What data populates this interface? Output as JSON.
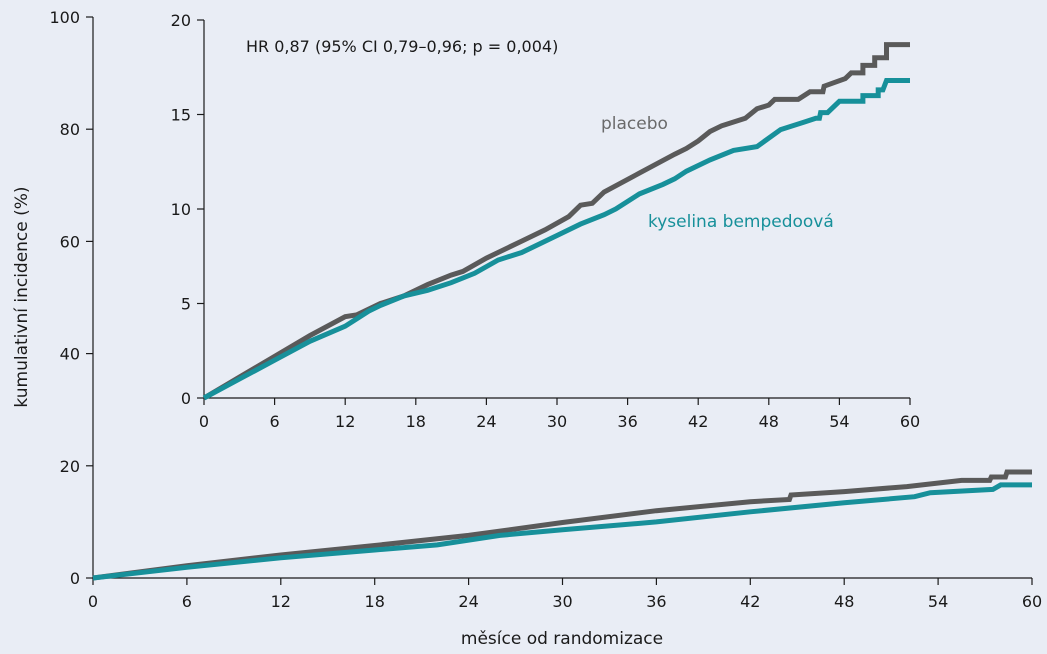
{
  "chart_data": [
    {
      "type": "line",
      "title": "",
      "xlabel": "měsíce od randomizace",
      "ylabel": "kumulativní incidence (%)",
      "xlim": [
        0,
        60
      ],
      "ylim": [
        0,
        100
      ],
      "xticks": [
        0,
        6,
        12,
        18,
        24,
        30,
        36,
        42,
        48,
        54,
        60
      ],
      "yticks": [
        0,
        20,
        40,
        60,
        80,
        100
      ],
      "grid": false,
      "series": [
        {
          "color": "#5a5a5a",
          "points": [
            [
              0,
              0
            ],
            [
              6,
              2.2
            ],
            [
              12,
              4.1
            ],
            [
              18,
              5.8
            ],
            [
              24,
              7.6
            ],
            [
              30,
              9.9
            ],
            [
              36,
              12.0
            ],
            [
              42,
              13.6
            ],
            [
              44.5,
              14.0
            ],
            [
              44.6,
              14.8
            ],
            [
              48,
              15.4
            ],
            [
              52,
              16.3
            ],
            [
              55.5,
              17.4
            ],
            [
              57.3,
              17.4
            ],
            [
              57.4,
              18.0
            ],
            [
              58.3,
              18.0
            ],
            [
              58.4,
              18.9
            ],
            [
              60,
              18.9
            ]
          ]
        },
        {
          "color": "#17909a",
          "points": [
            [
              0,
              0
            ],
            [
              6,
              1.9
            ],
            [
              12,
              3.6
            ],
            [
              18,
              5.0
            ],
            [
              22,
              5.9
            ],
            [
              26,
              7.6
            ],
            [
              30,
              8.6
            ],
            [
              36,
              10.0
            ],
            [
              42,
              11.8
            ],
            [
              48,
              13.4
            ],
            [
              52.5,
              14.5
            ],
            [
              53.5,
              15.2
            ],
            [
              57.5,
              15.8
            ],
            [
              58,
              16.6
            ],
            [
              60,
              16.6
            ]
          ]
        }
      ]
    },
    {
      "type": "line",
      "title": "",
      "annotation": "HR 0,87 (95% CI 0,79–0,96; p = 0,004)",
      "xlabel": "",
      "ylabel": "",
      "xlim": [
        0,
        60
      ],
      "ylim": [
        0,
        20
      ],
      "xticks": [
        0,
        6,
        12,
        18,
        24,
        30,
        36,
        42,
        48,
        54,
        60
      ],
      "yticks": [
        0,
        5,
        10,
        15,
        20
      ],
      "grid": false,
      "series": [
        {
          "name": "placebo",
          "color": "#5a5a5a",
          "points": [
            [
              0,
              0
            ],
            [
              3,
              1.1
            ],
            [
              6,
              2.2
            ],
            [
              9,
              3.3
            ],
            [
              12,
              4.3
            ],
            [
              13,
              4.4
            ],
            [
              15,
              5.0
            ],
            [
              17,
              5.4
            ],
            [
              19,
              6.0
            ],
            [
              21,
              6.5
            ],
            [
              22,
              6.7
            ],
            [
              24,
              7.4
            ],
            [
              27,
              8.3
            ],
            [
              29,
              8.9
            ],
            [
              31,
              9.6
            ],
            [
              32,
              10.2
            ],
            [
              33,
              10.3
            ],
            [
              34,
              10.9
            ],
            [
              37,
              11.9
            ],
            [
              40,
              12.9
            ],
            [
              41,
              13.2
            ],
            [
              42,
              13.6
            ],
            [
              43,
              14.1
            ],
            [
              44,
              14.4
            ],
            [
              46,
              14.8
            ],
            [
              47,
              15.3
            ],
            [
              48,
              15.5
            ],
            [
              48.5,
              15.8
            ],
            [
              50.5,
              15.8
            ],
            [
              51.5,
              16.2
            ],
            [
              52.6,
              16.2
            ],
            [
              52.7,
              16.5
            ],
            [
              54.5,
              16.9
            ],
            [
              55,
              17.2
            ],
            [
              56,
              17.2
            ],
            [
              56,
              17.6
            ],
            [
              57,
              17.6
            ],
            [
              57,
              18.0
            ],
            [
              58,
              18.0
            ],
            [
              58,
              18.7
            ],
            [
              60,
              18.7
            ]
          ]
        },
        {
          "name": "kyselina bempedoová",
          "color": "#17909a",
          "points": [
            [
              0,
              0
            ],
            [
              3,
              1.0
            ],
            [
              6,
              2.0
            ],
            [
              9,
              3.0
            ],
            [
              12,
              3.8
            ],
            [
              13,
              4.2
            ],
            [
              14,
              4.6
            ],
            [
              15,
              4.9
            ],
            [
              17,
              5.4
            ],
            [
              19,
              5.7
            ],
            [
              21,
              6.1
            ],
            [
              23,
              6.6
            ],
            [
              25,
              7.3
            ],
            [
              27,
              7.7
            ],
            [
              30,
              8.6
            ],
            [
              32,
              9.2
            ],
            [
              34,
              9.7
            ],
            [
              35,
              10.0
            ],
            [
              37,
              10.8
            ],
            [
              39,
              11.3
            ],
            [
              40,
              11.6
            ],
            [
              41,
              12.0
            ],
            [
              43,
              12.6
            ],
            [
              45,
              13.1
            ],
            [
              47,
              13.3
            ],
            [
              49,
              14.2
            ],
            [
              51,
              14.6
            ],
            [
              52,
              14.8
            ],
            [
              52.3,
              14.8
            ],
            [
              52.4,
              15.1
            ],
            [
              53,
              15.1
            ],
            [
              54,
              15.7
            ],
            [
              56,
              15.7
            ],
            [
              56,
              16.0
            ],
            [
              57.3,
              16.0
            ],
            [
              57.3,
              16.3
            ],
            [
              57.7,
              16.3
            ],
            [
              58,
              16.8
            ],
            [
              60,
              16.8
            ]
          ]
        }
      ]
    }
  ]
}
